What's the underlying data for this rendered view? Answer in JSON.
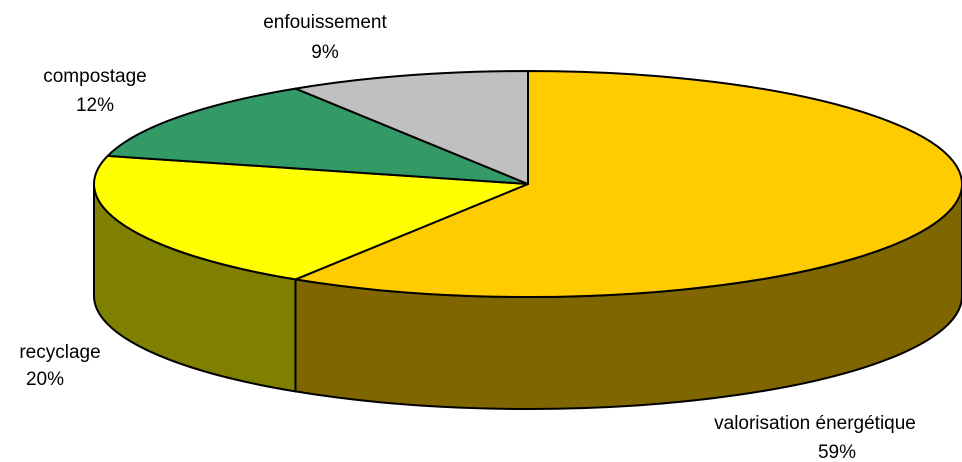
{
  "chart_data": {
    "type": "pie",
    "style": "3d",
    "slices": [
      {
        "label": "valorisation énergétique",
        "percent_text": "59%",
        "value": 59,
        "top_color": "#FFCC00",
        "side_color": "#806600"
      },
      {
        "label": "recyclage",
        "percent_text": "20%",
        "value": 20,
        "top_color": "#FFFF00",
        "side_color": "#808000"
      },
      {
        "label": "compostage",
        "percent_text": "12%",
        "value": 12,
        "top_color": "#339966",
        "side_color": "#1A4D33"
      },
      {
        "label": "enfouissement",
        "percent_text": "9%",
        "value": 9,
        "top_color": "#C0C0C0",
        "side_color": "#606060"
      }
    ],
    "legend": "none",
    "outline_color": "#000000"
  }
}
